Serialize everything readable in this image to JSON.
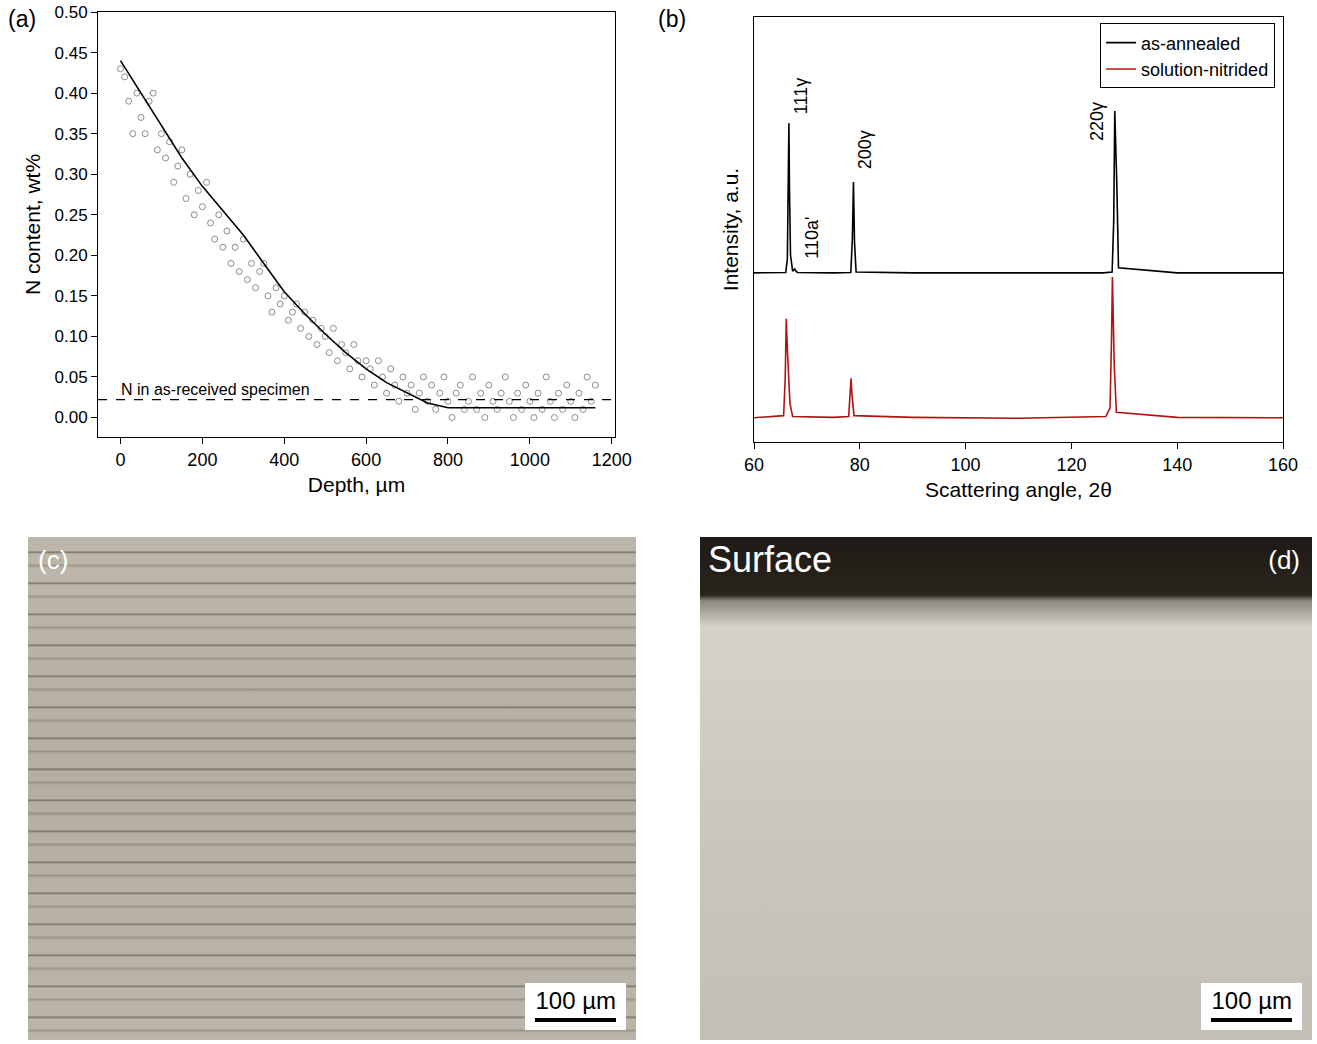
{
  "chart_data": [
    {
      "panel_label": "(a)",
      "type": "scatter",
      "x_label": "Depth, µm",
      "y_label": "N content, wt%",
      "xlim": [
        -55,
        1208
      ],
      "ylim": [
        -0.024,
        0.5
      ],
      "xticks": [
        0,
        200,
        400,
        600,
        800,
        1000,
        1200
      ],
      "yticks": [
        {
          "value": 0,
          "label": "0.00"
        },
        {
          "value": 0.05,
          "label": "0.05"
        },
        {
          "value": 0.1,
          "label": "0.10"
        },
        {
          "value": 0.15,
          "label": "0.15"
        },
        {
          "value": 0.2,
          "label": "0.20"
        },
        {
          "value": 0.25,
          "label": "0.25"
        },
        {
          "value": 0.3,
          "label": "0.30"
        },
        {
          "value": 0.35,
          "label": "0.35"
        },
        {
          "value": 0.4,
          "label": "0.40"
        },
        {
          "value": 0.45,
          "label": "0.45"
        },
        {
          "value": 0.5,
          "label": "0.50"
        }
      ],
      "grid": false,
      "series": [
        {
          "type": "scatter",
          "marker": "open_circle",
          "color": "#8c8c8c",
          "x": [
            0,
            10,
            20,
            30,
            40,
            50,
            60,
            70,
            80,
            90,
            100,
            110,
            120,
            130,
            140,
            150,
            160,
            170,
            180,
            190,
            200,
            210,
            220,
            230,
            240,
            250,
            260,
            270,
            280,
            290,
            300,
            310,
            320,
            330,
            340,
            350,
            360,
            370,
            380,
            390,
            400,
            410,
            420,
            430,
            440,
            450,
            460,
            470,
            480,
            490,
            500,
            510,
            520,
            530,
            540,
            550,
            560,
            570,
            580,
            590,
            600,
            610,
            620,
            630,
            640,
            650,
            660,
            670,
            680,
            690,
            700,
            710,
            720,
            730,
            740,
            750,
            760,
            770,
            780,
            790,
            800,
            810,
            820,
            830,
            840,
            850,
            860,
            870,
            880,
            890,
            900,
            910,
            920,
            930,
            940,
            950,
            960,
            970,
            980,
            990,
            1000,
            1010,
            1020,
            1030,
            1040,
            1050,
            1060,
            1070,
            1080,
            1090,
            1100,
            1110,
            1120,
            1130,
            1140,
            1150,
            1160
          ],
          "values": [
            0.43,
            0.42,
            0.39,
            0.35,
            0.4,
            0.37,
            0.35,
            0.39,
            0.4,
            0.33,
            0.35,
            0.32,
            0.34,
            0.29,
            0.31,
            0.33,
            0.27,
            0.3,
            0.25,
            0.28,
            0.26,
            0.29,
            0.24,
            0.22,
            0.25,
            0.21,
            0.23,
            0.19,
            0.21,
            0.18,
            0.22,
            0.17,
            0.19,
            0.16,
            0.18,
            0.19,
            0.15,
            0.13,
            0.16,
            0.14,
            0.15,
            0.12,
            0.13,
            0.14,
            0.11,
            0.13,
            0.1,
            0.12,
            0.09,
            0.11,
            0.1,
            0.08,
            0.11,
            0.07,
            0.09,
            0.08,
            0.06,
            0.09,
            0.07,
            0.05,
            0.07,
            0.06,
            0.04,
            0.07,
            0.05,
            0.03,
            0.06,
            0.04,
            0.02,
            0.05,
            0.03,
            0.04,
            0.01,
            0.03,
            0.05,
            0.02,
            0.04,
            0.01,
            0.03,
            0.05,
            0.02,
            0.0,
            0.03,
            0.04,
            0.01,
            0.02,
            0.05,
            0.01,
            0.03,
            0.0,
            0.04,
            0.02,
            0.01,
            0.03,
            0.05,
            0.02,
            0.0,
            0.03,
            0.01,
            0.04,
            0.02,
            0.0,
            0.03,
            0.01,
            0.05,
            0.02,
            0.0,
            0.03,
            0.01,
            0.04,
            0.02,
            0.0,
            0.03,
            0.01,
            0.05,
            0.02,
            0.04
          ]
        },
        {
          "type": "line",
          "line_style": "solid",
          "color": "#000000",
          "x": [
            0,
            50,
            100,
            150,
            200,
            250,
            300,
            350,
            400,
            450,
            500,
            550,
            600,
            650,
            700,
            750,
            800,
            850,
            900,
            1000,
            1100,
            1160
          ],
          "values": [
            0.44,
            0.4,
            0.36,
            0.32,
            0.285,
            0.255,
            0.225,
            0.19,
            0.155,
            0.128,
            0.103,
            0.08,
            0.06,
            0.043,
            0.03,
            0.018,
            0.012,
            0.012,
            0.012,
            0.012,
            0.012,
            0.012
          ]
        }
      ],
      "reference_line": {
        "y": 0.022,
        "label": "N in as-received specimen",
        "line_style": "dashed",
        "color": "#000000"
      }
    },
    {
      "panel_label": "(b)",
      "type": "line",
      "x_label": "Scattering angle, 2θ",
      "y_label": "Intensity, a.u.",
      "xlim": [
        60,
        160
      ],
      "ylim": [
        0,
        1000
      ],
      "xticks": [
        60,
        80,
        100,
        120,
        140,
        160
      ],
      "tick_labels": "x",
      "grid": false,
      "legend": "upper right",
      "series": [
        {
          "name": "as-annealed",
          "color": "#000000",
          "x": [
            60,
            65,
            66.0,
            66.3,
            66.5,
            66.6,
            66.7,
            66.9,
            67.3,
            67.6,
            67.7,
            67.8,
            68.2,
            75,
            78.3,
            78.6,
            78.8,
            79.0,
            79.3,
            90,
            110,
            126,
            127.7,
            128.0,
            128.2,
            128.4,
            128.6,
            128.9,
            140,
            160
          ],
          "values": [
            398,
            398,
            399,
            430,
            620,
            750,
            600,
            440,
            402,
            405,
            407,
            404,
            399,
            398,
            399,
            480,
            612,
            470,
            400,
            398,
            398,
            398,
            400,
            520,
            779,
            640,
            600,
            410,
            398,
            398
          ]
        },
        {
          "name": "solution-nitrided",
          "color": "#b0140f",
          "x": [
            60,
            64,
            65.6,
            65.9,
            66.1,
            66.3,
            66.5,
            66.8,
            67.3,
            75,
            77.9,
            78.2,
            78.35,
            78.5,
            78.9,
            90,
            110,
            126.5,
            127.3,
            127.6,
            127.75,
            127.9,
            128.1,
            128.5,
            140,
            160
          ],
          "values": [
            57,
            60,
            62,
            150,
            290,
            220,
            160,
            90,
            60,
            58,
            60,
            110,
            150,
            115,
            62,
            58,
            56,
            60,
            80,
            250,
            388,
            300,
            180,
            70,
            58,
            57
          ]
        }
      ],
      "annotations": [
        {
          "text": "111γ",
          "x": 68.9,
          "y": 814
        },
        {
          "text": "110a'",
          "x": 70.8,
          "y": 481
        },
        {
          "text": "200γ",
          "x": 80.9,
          "y": 688
        },
        {
          "text": "220γ",
          "x": 124.8,
          "y": 755
        }
      ]
    }
  ],
  "images": [
    {
      "panel_label": "(c)",
      "scale_bar": "100 µm"
    },
    {
      "panel_label": "(d)",
      "scale_bar": "100 µm",
      "annotation": "Surface"
    }
  ]
}
